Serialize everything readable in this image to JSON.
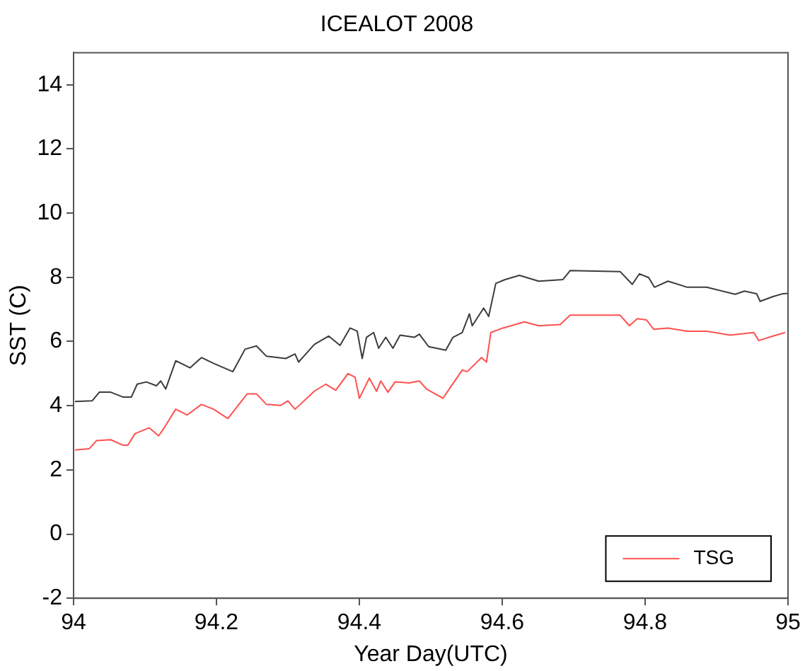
{
  "chart_data": {
    "type": "line",
    "title": "ICEALOT 2008",
    "xlabel": "Year Day(UTC)",
    "ylabel": "SST (C)",
    "xlim": [
      94,
      95
    ],
    "xticks": [
      94,
      94.2,
      94.4,
      94.6,
      94.8,
      95
    ],
    "ylim": [
      -2,
      15
    ],
    "yticks": [
      -2,
      0,
      2,
      4,
      6,
      8,
      10,
      12,
      14
    ],
    "grid": false,
    "legend": "bottom right",
    "marker": "none",
    "line_style": "solid",
    "series": [
      {
        "color": "#3c3c3c",
        "x": [
          94.002,
          94.026,
          94.036,
          94.052,
          94.069,
          94.081,
          94.089,
          94.102,
          94.116,
          94.122,
          94.129,
          94.143,
          94.163,
          94.179,
          94.196,
          94.223,
          94.24,
          94.256,
          94.27,
          94.297,
          94.31,
          94.315,
          94.337,
          94.357,
          94.373,
          94.387,
          94.397,
          94.404,
          94.41,
          94.42,
          94.427,
          94.437,
          94.447,
          94.457,
          94.477,
          94.484,
          94.497,
          94.521,
          94.531,
          94.544,
          94.554,
          94.558,
          94.574,
          94.581,
          94.591,
          94.604,
          94.624,
          94.651,
          94.685,
          94.695,
          94.765,
          94.782,
          94.792,
          94.805,
          94.813,
          94.832,
          94.859,
          94.886,
          94.926,
          94.939,
          94.956,
          94.961,
          94.979,
          94.993,
          95
        ],
        "values": [
          4.13,
          4.15,
          4.42,
          4.42,
          4.27,
          4.27,
          4.67,
          4.74,
          4.62,
          4.77,
          4.52,
          5.4,
          5.18,
          5.5,
          5.32,
          5.06,
          5.76,
          5.86,
          5.54,
          5.47,
          5.61,
          5.36,
          5.91,
          6.17,
          5.88,
          6.42,
          6.32,
          5.47,
          6.13,
          6.28,
          5.79,
          6.13,
          5.79,
          6.2,
          6.13,
          6.23,
          5.84,
          5.73,
          6.13,
          6.28,
          6.86,
          6.49,
          7.04,
          6.78,
          7.81,
          7.93,
          8.06,
          7.88,
          7.93,
          8.21,
          8.18,
          7.78,
          8.11,
          7.99,
          7.69,
          7.88,
          7.69,
          7.69,
          7.47,
          7.57,
          7.49,
          7.25,
          7.4,
          7.49,
          7.5
        ]
      },
      {
        "name": "TSG",
        "color": "#ff5050",
        "x": [
          94.002,
          94.022,
          94.032,
          94.052,
          94.069,
          94.076,
          94.086,
          94.106,
          94.119,
          94.126,
          94.143,
          94.159,
          94.179,
          94.196,
          94.216,
          94.243,
          94.256,
          94.27,
          94.29,
          94.3,
          94.31,
          94.337,
          94.353,
          94.367,
          94.384,
          94.394,
          94.4,
          94.414,
          94.424,
          94.43,
          94.44,
          94.45,
          94.47,
          94.484,
          94.494,
          94.517,
          94.528,
          94.544,
          94.551,
          94.571,
          94.578,
          94.584,
          94.601,
          94.631,
          94.651,
          94.681,
          94.695,
          94.765,
          94.778,
          94.789,
          94.802,
          94.812,
          94.832,
          94.859,
          94.886,
          94.919,
          94.952,
          94.959,
          94.979,
          94.996
        ],
        "values": [
          2.62,
          2.66,
          2.91,
          2.94,
          2.77,
          2.77,
          3.13,
          3.31,
          3.06,
          3.28,
          3.89,
          3.71,
          4.04,
          3.89,
          3.6,
          4.37,
          4.37,
          4.04,
          4.01,
          4.15,
          3.89,
          4.45,
          4.67,
          4.48,
          5,
          4.89,
          4.23,
          4.86,
          4.45,
          4.77,
          4.42,
          4.74,
          4.71,
          4.77,
          4.52,
          4.23,
          4.59,
          5.11,
          5.06,
          5.5,
          5.36,
          6.28,
          6.42,
          6.61,
          6.49,
          6.53,
          6.82,
          6.82,
          6.49,
          6.71,
          6.67,
          6.38,
          6.42,
          6.32,
          6.32,
          6.2,
          6.28,
          6.03,
          6.17,
          6.28
        ]
      }
    ]
  }
}
